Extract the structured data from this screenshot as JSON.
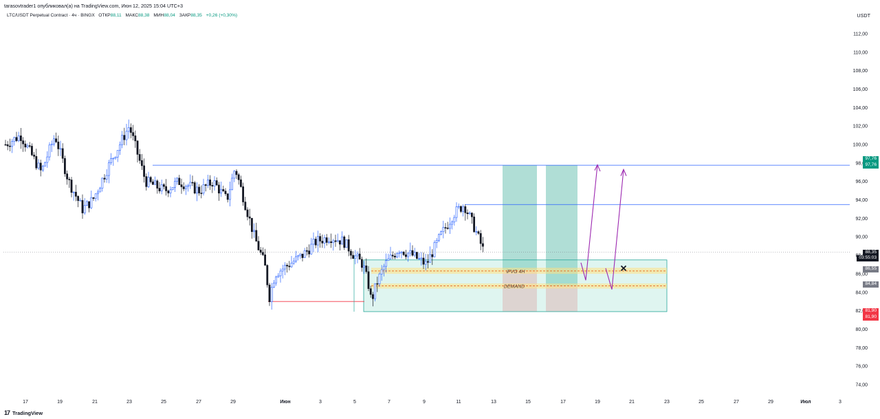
{
  "header": {
    "publisher": "tarasovtrader1 опубликовал(а) на TradingView.com, Июн 12, 2025 15:04 UTC+3"
  },
  "legend": {
    "symbol": "LTC/USDT Perpetual Contract · 4ч · BINGX",
    "open_label": "ОТКР",
    "open": "88,11",
    "high_label": "МАКС",
    "high": "88,38",
    "low_label": "МИН",
    "low": "88,04",
    "close_label": "ЗАКР",
    "close": "88,35",
    "change": "+0,26 (+0,30%)"
  },
  "axis": {
    "unit": "USDT",
    "y_ticks": [
      "112,00",
      "110,00",
      "108,00",
      "106,00",
      "104,00",
      "102,00",
      "100,00",
      "98,00",
      "96,00",
      "94,00",
      "92,00",
      "90,00",
      "88,00",
      "86,00",
      "84,00",
      "82,00",
      "80,00",
      "78,00",
      "76,00",
      "74,00"
    ],
    "x_ticks": [
      "17",
      "19",
      "21",
      "23",
      "25",
      "27",
      "29",
      "Июн",
      "3",
      "5",
      "7",
      "9",
      "11",
      "13",
      "15",
      "17",
      "19",
      "21",
      "23",
      "25",
      "27",
      "29",
      "Июл",
      "3"
    ]
  },
  "price_tags": {
    "green_top": "97,76",
    "green_bottom": "97,76",
    "current": "88,35",
    "countdown": "03:55:03",
    "grey1": "86,55",
    "grey2": "84,84",
    "red_top": "81,90",
    "red_bottom": "81,90"
  },
  "annotations": {
    "ifvg": "iFVG 4H",
    "demand": "DEMAND"
  },
  "footer": {
    "logo": "17",
    "brand": "TradingView"
  },
  "colors": {
    "up": "#2962ff",
    "down": "#131722",
    "tp": "#089981",
    "sl": "#f23645",
    "arrow": "#9c27b0"
  },
  "chart_data": {
    "type": "candlestick",
    "ylim": [
      73,
      114
    ],
    "last_close": 88.35,
    "levels": {
      "target_high": 97.76,
      "local_high": 93.5,
      "sl_low": 83.0,
      "stop": 81.9,
      "ifvg": 86.3,
      "demand": 84.7
    }
  }
}
